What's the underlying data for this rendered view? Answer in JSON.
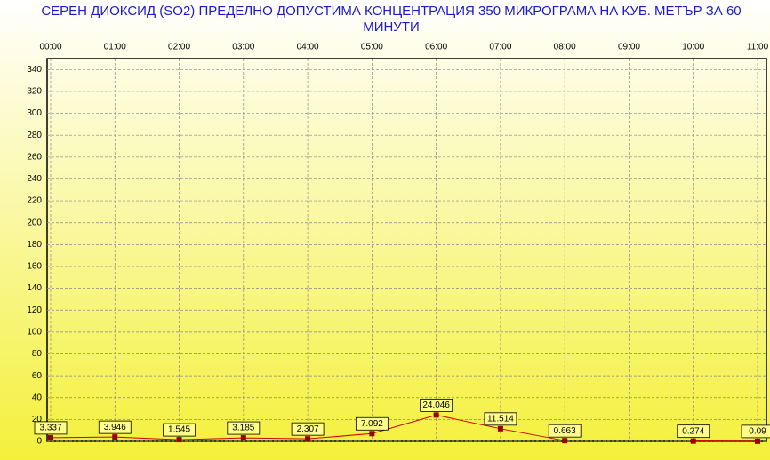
{
  "chart_data": {
    "type": "line",
    "title": "СЕРЕН ДИОКСИД  (SO2)  ПРЕДЕЛНО ДОПУСТИМА КОНЦЕНТРАЦИЯ 350 МИКРОГРАМА  НА КУБ. МЕТЪР ЗА 60 МИНУТИ",
    "categories": [
      "00:00",
      "01:00",
      "02:00",
      "03:00",
      "04:00",
      "05:00",
      "06:00",
      "07:00",
      "08:00",
      "09:00",
      "10:00",
      "11:00"
    ],
    "values": [
      3.337,
      3.946,
      1.545,
      3.185,
      2.307,
      7.092,
      24.046,
      11.514,
      0.663,
      null,
      0.274,
      0.09
    ],
    "color": "#cc0000",
    "ylim": [
      0,
      350
    ],
    "yticks": [
      0,
      20,
      40,
      60,
      80,
      100,
      120,
      140,
      160,
      180,
      200,
      220,
      240,
      260,
      280,
      300,
      320,
      340
    ],
    "grid": true
  }
}
